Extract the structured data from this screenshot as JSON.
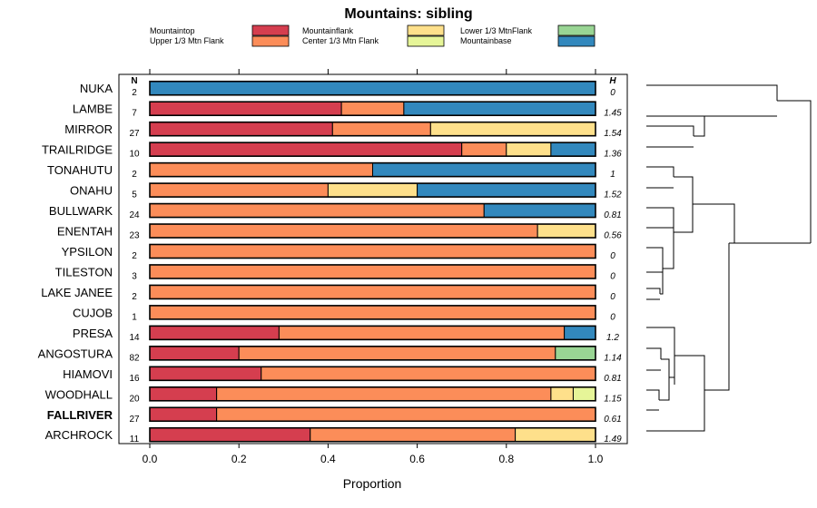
{
  "chart_data": {
    "type": "stacked-horizontal-bar",
    "title": "Mountains: sibling",
    "xlabel": "Proportion",
    "xlim": [
      0,
      1
    ],
    "xticks": [
      "0.0",
      "0.2",
      "0.4",
      "0.6",
      "0.8",
      "1.0"
    ],
    "n_header": "N",
    "h_header": "H",
    "legend": [
      {
        "name": "Mountaintop",
        "color": "#d53e4f"
      },
      {
        "name": "Upper 1/3 Mtn Flank",
        "color": "#fc8d59"
      },
      {
        "name": "Mountainflank",
        "color": "#fee08b"
      },
      {
        "name": "Center 1/3 Mtn Flank",
        "color": "#e6f598"
      },
      {
        "name": "Lower 1/3 MtnFlank",
        "color": "#99d594"
      },
      {
        "name": "Mountainbase",
        "color": "#3288bd"
      }
    ],
    "rows": [
      {
        "label": "NUKA",
        "n": "2",
        "h": "0",
        "bold": false,
        "segments": [
          0,
          0,
          0,
          0,
          0,
          1.0
        ]
      },
      {
        "label": "LAMBE",
        "n": "7",
        "h": "1.45",
        "bold": false,
        "segments": [
          0.43,
          0.14,
          0,
          0,
          0,
          0.43
        ]
      },
      {
        "label": "MIRROR",
        "n": "27",
        "h": "1.54",
        "bold": false,
        "segments": [
          0.41,
          0.22,
          0.37,
          0,
          0,
          0
        ]
      },
      {
        "label": "TRAILRIDGE",
        "n": "10",
        "h": "1.36",
        "bold": false,
        "segments": [
          0.7,
          0.1,
          0.1,
          0,
          0,
          0.1
        ]
      },
      {
        "label": "TONAHUTU",
        "n": "2",
        "h": "1",
        "bold": false,
        "segments": [
          0,
          0.5,
          0,
          0,
          0,
          0.5
        ]
      },
      {
        "label": "ONAHU",
        "n": "5",
        "h": "1.52",
        "bold": false,
        "segments": [
          0,
          0.4,
          0.2,
          0,
          0,
          0.4
        ]
      },
      {
        "label": "BULLWARK",
        "n": "24",
        "h": "0.81",
        "bold": false,
        "segments": [
          0,
          0.75,
          0,
          0,
          0,
          0.25
        ]
      },
      {
        "label": "ENENTAH",
        "n": "23",
        "h": "0.56",
        "bold": false,
        "segments": [
          0,
          0.87,
          0.13,
          0,
          0,
          0
        ]
      },
      {
        "label": "YPSILON",
        "n": "2",
        "h": "0",
        "bold": false,
        "segments": [
          0,
          1.0,
          0,
          0,
          0,
          0
        ]
      },
      {
        "label": "TILESTON",
        "n": "3",
        "h": "0",
        "bold": false,
        "segments": [
          0,
          1.0,
          0,
          0,
          0,
          0
        ]
      },
      {
        "label": "LAKE JANEE",
        "n": "2",
        "h": "0",
        "bold": false,
        "segments": [
          0,
          1.0,
          0,
          0,
          0,
          0
        ]
      },
      {
        "label": "CUJOB",
        "n": "1",
        "h": "0",
        "bold": false,
        "segments": [
          0,
          1.0,
          0,
          0,
          0,
          0
        ]
      },
      {
        "label": "PRESA",
        "n": "14",
        "h": "1.2",
        "bold": false,
        "segments": [
          0.29,
          0.64,
          0,
          0,
          0,
          0.07
        ]
      },
      {
        "label": "ANGOSTURA",
        "n": "82",
        "h": "1.14",
        "bold": false,
        "segments": [
          0.2,
          0.71,
          0,
          0,
          0.09,
          0
        ]
      },
      {
        "label": "HIAMOVI",
        "n": "16",
        "h": "0.81",
        "bold": false,
        "segments": [
          0.25,
          0.75,
          0,
          0,
          0,
          0
        ]
      },
      {
        "label": "WOODHALL",
        "n": "20",
        "h": "1.15",
        "bold": false,
        "segments": [
          0.15,
          0.75,
          0.05,
          0.05,
          0,
          0
        ]
      },
      {
        "label": "FALLRIVER",
        "n": "27",
        "h": "0.61",
        "bold": true,
        "segments": [
          0.15,
          0.85,
          0,
          0,
          0,
          0
        ]
      },
      {
        "label": "ARCHROCK",
        "n": "11",
        "h": "1.49",
        "bold": false,
        "segments": [
          0.36,
          0.46,
          0.18,
          0,
          0,
          0
        ]
      }
    ]
  }
}
